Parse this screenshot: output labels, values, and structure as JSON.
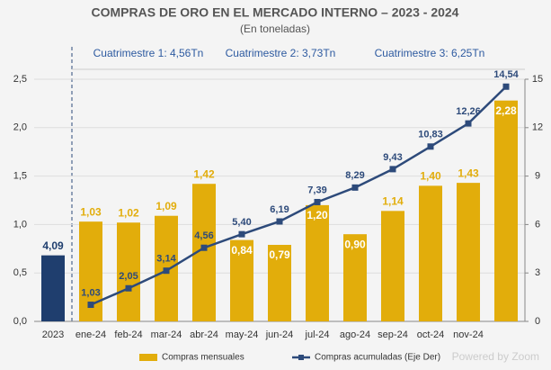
{
  "chart_data": {
    "type": "bar_line",
    "title": "COMPRAS DE ORO EN EL MERCADO INTERNO – 2023 - 2024",
    "subtitle": "(En toneladas)",
    "annotations": [
      "Cuatrimestre 1: 4,56Tn",
      "Cuatrimestre 2: 3,73Tn",
      "Cuatrimestre 3: 6,25Tn"
    ],
    "watermark": "Powered by Zoom",
    "categories": [
      "2023",
      "ene-24",
      "feb-24",
      "mar-24",
      "abr-24",
      "may-24",
      "jun-24",
      "jul-24",
      "ago-24",
      "sep-24",
      "oct-24",
      "nov-24",
      null
    ],
    "series": [
      {
        "color": "#1f3e6e",
        "axis": "y2",
        "values": [
          4.09,
          null,
          null,
          null,
          null,
          null,
          null,
          null,
          null,
          null,
          null,
          null,
          null
        ],
        "value_labels": [
          "4,09",
          null,
          null,
          null,
          null,
          null,
          null,
          null,
          null,
          null,
          null,
          null,
          null
        ]
      },
      {
        "name": "Compras mensuales",
        "color": "#e2ad0b",
        "values": [
          null,
          1.03,
          1.02,
          1.09,
          1.42,
          0.84,
          0.79,
          1.2,
          0.9,
          1.14,
          1.4,
          1.43,
          2.28
        ],
        "value_labels": [
          null,
          "1,03",
          "1,02",
          "1,09",
          "1,42",
          "0,84",
          "0,79",
          "1,20",
          "0,90",
          "1,14",
          "1,40",
          "1,43",
          "2,28"
        ]
      },
      {
        "name": "Compras acumuladas (Eje Der)",
        "color": "#2d4a7a",
        "axis": "y2",
        "values": [
          null,
          1.03,
          2.05,
          3.14,
          4.56,
          5.4,
          6.19,
          7.39,
          8.29,
          9.43,
          10.83,
          12.26,
          14.54
        ],
        "value_labels": [
          null,
          "1,03",
          "2,05",
          "3,14",
          "4,56",
          "5,40",
          "6,19",
          "7,39",
          "8,29",
          "9,43",
          "10,83",
          "12,26",
          "14,54"
        ]
      }
    ],
    "ylim": [
      0,
      2.5
    ],
    "yticks": [
      {
        "value": 0,
        "label": "0,0"
      },
      {
        "value": 0.5,
        "label": "0,5"
      },
      {
        "value": 1,
        "label": "1,0"
      },
      {
        "value": 1.5,
        "label": "1,5"
      },
      {
        "value": 2,
        "label": "2,0"
      },
      {
        "value": 2.5,
        "label": "2,5"
      }
    ],
    "y2lim": [
      0,
      15
    ],
    "y2ticks": [
      0,
      3,
      6,
      9,
      12,
      15
    ],
    "grid": true
  }
}
